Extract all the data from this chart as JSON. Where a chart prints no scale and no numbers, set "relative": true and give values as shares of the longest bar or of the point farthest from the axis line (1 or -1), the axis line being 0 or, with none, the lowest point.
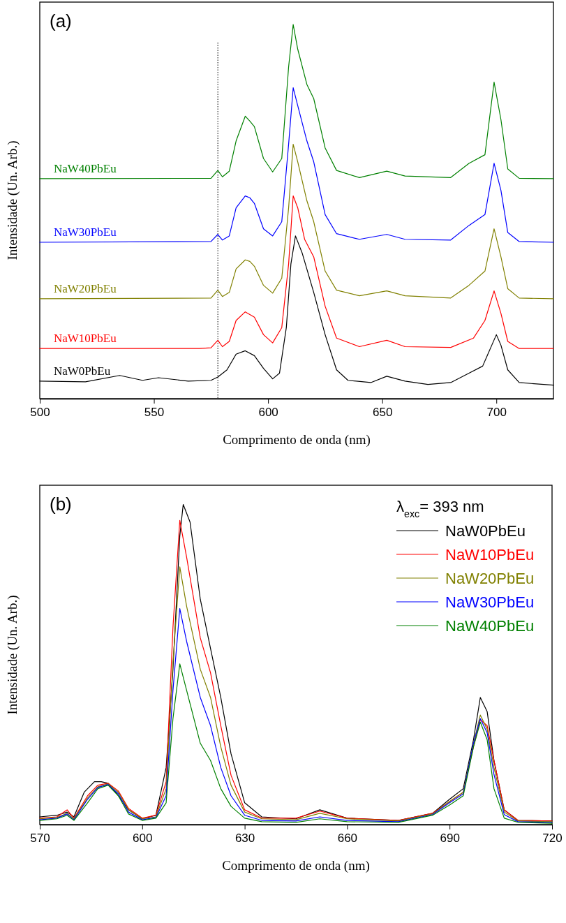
{
  "chart_data": [
    {
      "type": "line",
      "title": "(a)",
      "xlabel": "Comprimento de onda (nm)",
      "ylabel": "Intensidade (Un. Arb.)",
      "relative": true,
      "xlim": [
        500,
        725
      ],
      "xticks": [
        500,
        550,
        600,
        650,
        700
      ],
      "ref_lines": [
        {
          "axis": "x",
          "value": 578,
          "line_style": "dotted",
          "color": "#000000"
        }
      ],
      "series": [
        {
          "name": "NaW0PbEu",
          "color": "#000000",
          "x": [
            500,
            520,
            535,
            545,
            552,
            565,
            575,
            578,
            582,
            586,
            590,
            594,
            598,
            602,
            605,
            608,
            610,
            612,
            615,
            620,
            625,
            630,
            635,
            645,
            652,
            660,
            670,
            680,
            688,
            694,
            698,
            700,
            702,
            705,
            710,
            725
          ],
          "values": [
            0.047,
            0.045,
            0.062,
            0.049,
            0.056,
            0.047,
            0.049,
            0.058,
            0.077,
            0.119,
            0.128,
            0.115,
            0.081,
            0.053,
            0.068,
            0.19,
            0.36,
            0.435,
            0.388,
            0.284,
            0.171,
            0.077,
            0.049,
            0.043,
            0.06,
            0.047,
            0.038,
            0.043,
            0.068,
            0.087,
            0.143,
            0.171,
            0.143,
            0.077,
            0.043,
            0.036
          ]
        },
        {
          "name": "NaW10PbEu",
          "color": "#ff0000",
          "x": [
            500,
            570,
            575,
            578,
            580,
            583,
            586,
            590,
            594,
            598,
            602,
            606,
            609,
            611,
            613,
            616,
            620,
            625,
            630,
            640,
            652,
            660,
            680,
            690,
            695,
            699,
            702,
            705,
            710,
            725
          ],
          "values": [
            0.134,
            0.134,
            0.136,
            0.156,
            0.139,
            0.153,
            0.209,
            0.232,
            0.218,
            0.171,
            0.149,
            0.19,
            0.36,
            0.542,
            0.51,
            0.426,
            0.379,
            0.247,
            0.162,
            0.139,
            0.156,
            0.139,
            0.137,
            0.162,
            0.209,
            0.288,
            0.228,
            0.153,
            0.134,
            0.134
          ]
        },
        {
          "name": "NaW20PbEu",
          "color": "#808000",
          "x": [
            500,
            575,
            578,
            580,
            583,
            586,
            590,
            592,
            594,
            598,
            602,
            606,
            609,
            611,
            613,
            617,
            620,
            625,
            630,
            640,
            652,
            660,
            680,
            688,
            695,
            699,
            702,
            705,
            710,
            725
          ],
          "values": [
            0.267,
            0.269,
            0.29,
            0.273,
            0.284,
            0.347,
            0.371,
            0.367,
            0.354,
            0.303,
            0.282,
            0.322,
            0.51,
            0.68,
            0.633,
            0.529,
            0.473,
            0.341,
            0.29,
            0.275,
            0.288,
            0.275,
            0.269,
            0.303,
            0.341,
            0.454,
            0.379,
            0.294,
            0.269,
            0.267
          ]
        },
        {
          "name": "NaW30PbEu",
          "color": "#0000ff",
          "x": [
            500,
            575,
            578,
            580,
            583,
            586,
            590,
            592,
            594,
            598,
            602,
            606,
            609,
            611,
            613,
            617,
            620,
            625,
            630,
            640,
            652,
            660,
            680,
            688,
            695,
            699,
            702,
            705,
            710,
            725
          ],
          "values": [
            0.418,
            0.42,
            0.439,
            0.424,
            0.435,
            0.51,
            0.542,
            0.537,
            0.522,
            0.454,
            0.435,
            0.473,
            0.68,
            0.831,
            0.783,
            0.689,
            0.633,
            0.492,
            0.441,
            0.426,
            0.439,
            0.426,
            0.424,
            0.463,
            0.492,
            0.629,
            0.557,
            0.444,
            0.42,
            0.418
          ]
        },
        {
          "name": "NaW40PbEu",
          "color": "#008000",
          "x": [
            500,
            575,
            578,
            580,
            583,
            586,
            590,
            592,
            594,
            598,
            602,
            606,
            609,
            611,
            613,
            617,
            620,
            625,
            630,
            640,
            652,
            660,
            680,
            688,
            695,
            699,
            702,
            705,
            710,
            725
          ],
          "values": [
            0.588,
            0.589,
            0.61,
            0.593,
            0.608,
            0.689,
            0.755,
            0.742,
            0.727,
            0.642,
            0.606,
            0.642,
            0.887,
            1.0,
            0.934,
            0.84,
            0.802,
            0.67,
            0.61,
            0.591,
            0.608,
            0.595,
            0.591,
            0.629,
            0.652,
            0.846,
            0.746,
            0.614,
            0.589,
            0.588
          ]
        }
      ]
    },
    {
      "type": "line",
      "title": "(b)",
      "xlabel": "Comprimento de onda (nm)",
      "ylabel": "Intensidade (Un. Arb.)",
      "relative": true,
      "xlim": [
        570,
        720
      ],
      "xticks": [
        570,
        600,
        630,
        660,
        690,
        720
      ],
      "legend": "top right",
      "legend_title": "λ$_{exc}$= 393 nm",
      "x": [
        570,
        575,
        578,
        580,
        584,
        587,
        590,
        593,
        596,
        600,
        604,
        607,
        609,
        611,
        613,
        617,
        620,
        623,
        626,
        630,
        635,
        645,
        652,
        660,
        675,
        685,
        690,
        694,
        697,
        699,
        701,
        703,
        706,
        710,
        720
      ],
      "series": [
        {
          "name": "NaW0PbEu",
          "color": "#000000",
          "x": [
            570,
            575,
            578,
            580,
            583,
            586,
            588,
            590,
            593,
            596,
            600,
            604,
            607,
            609,
            611,
            612,
            614,
            617,
            620,
            623,
            626,
            630,
            635,
            645,
            652,
            660,
            675,
            685,
            690,
            694,
            697,
            699,
            701,
            703,
            706,
            710,
            720
          ],
          "values": [
            0.024,
            0.029,
            0.039,
            0.024,
            0.101,
            0.134,
            0.134,
            0.129,
            0.09,
            0.046,
            0.018,
            0.029,
            0.178,
            0.485,
            0.901,
            1.0,
            0.945,
            0.704,
            0.55,
            0.397,
            0.221,
            0.068,
            0.024,
            0.018,
            0.046,
            0.02,
            0.013,
            0.035,
            0.079,
            0.112,
            0.265,
            0.397,
            0.353,
            0.2,
            0.046,
            0.013,
            0.011
          ]
        },
        {
          "name": "NaW10PbEu",
          "color": "#ff0000",
          "values": [
            0.02,
            0.024,
            0.046,
            0.02,
            0.09,
            0.123,
            0.129,
            0.105,
            0.05,
            0.02,
            0.029,
            0.134,
            0.616,
            0.95,
            0.835,
            0.583,
            0.474,
            0.309,
            0.154,
            0.046,
            0.02,
            0.02,
            0.042,
            0.02,
            0.013,
            0.035,
            0.072,
            0.101,
            0.243,
            0.327,
            0.309,
            0.2,
            0.046,
            0.013,
            0.011
          ]
        },
        {
          "name": "NaW20PbEu",
          "color": "#808000",
          "values": [
            0.018,
            0.022,
            0.035,
            0.018,
            0.083,
            0.118,
            0.127,
            0.101,
            0.046,
            0.018,
            0.024,
            0.112,
            0.507,
            0.805,
            0.682,
            0.485,
            0.397,
            0.243,
            0.123,
            0.039,
            0.018,
            0.015,
            0.035,
            0.018,
            0.011,
            0.033,
            0.072,
            0.101,
            0.254,
            0.342,
            0.298,
            0.178,
            0.039,
            0.011,
            0.009
          ]
        },
        {
          "name": "NaW30PbEu",
          "color": "#0000ff",
          "values": [
            0.015,
            0.02,
            0.033,
            0.015,
            0.079,
            0.116,
            0.125,
            0.096,
            0.039,
            0.015,
            0.022,
            0.09,
            0.419,
            0.675,
            0.572,
            0.397,
            0.309,
            0.178,
            0.09,
            0.029,
            0.013,
            0.011,
            0.024,
            0.013,
            0.009,
            0.031,
            0.068,
            0.096,
            0.254,
            0.331,
            0.287,
            0.156,
            0.031,
            0.009,
            0.007
          ]
        },
        {
          "name": "NaW40PbEu",
          "color": "#008000",
          "values": [
            0.013,
            0.018,
            0.029,
            0.013,
            0.068,
            0.112,
            0.123,
            0.09,
            0.033,
            0.013,
            0.02,
            0.068,
            0.331,
            0.502,
            0.419,
            0.254,
            0.2,
            0.112,
            0.057,
            0.02,
            0.009,
            0.007,
            0.018,
            0.009,
            0.007,
            0.029,
            0.061,
            0.09,
            0.243,
            0.32,
            0.265,
            0.112,
            0.02,
            0.007,
            0.004
          ]
        }
      ]
    }
  ]
}
